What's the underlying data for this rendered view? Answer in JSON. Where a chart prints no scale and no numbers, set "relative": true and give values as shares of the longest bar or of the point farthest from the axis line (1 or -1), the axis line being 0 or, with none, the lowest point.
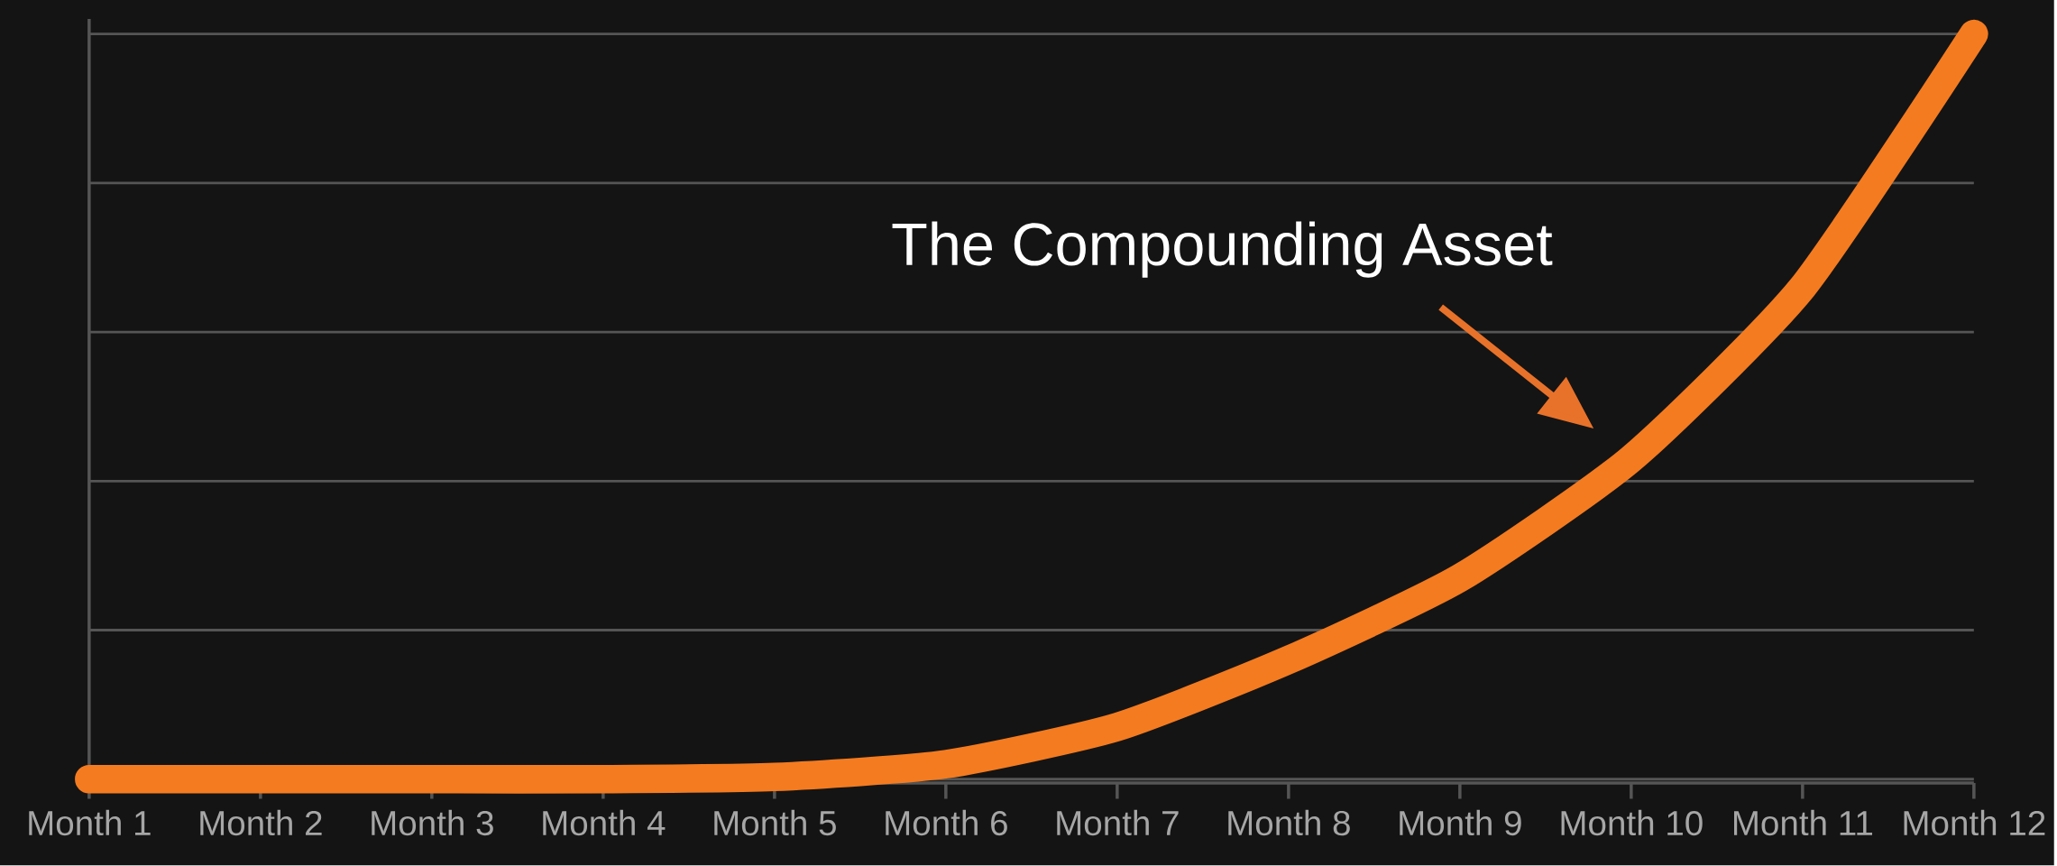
{
  "chart_data": {
    "type": "line",
    "relative": true,
    "color": "#f47b20",
    "grid": "y",
    "marker": "none",
    "line_style": "solid",
    "categories": [
      "Month 1",
      "Month 2",
      "Month 3",
      "Month 4",
      "Month 5",
      "Month 6",
      "Month 7",
      "Month 8",
      "Month 9",
      "Month 10",
      "Month 11",
      "Month 12"
    ],
    "values": [
      0,
      0,
      0,
      0,
      0.003,
      0.02,
      0.07,
      0.16,
      0.27,
      0.43,
      0.66,
      1
    ],
    "annotations": [
      "The Compounding Asset"
    ]
  }
}
